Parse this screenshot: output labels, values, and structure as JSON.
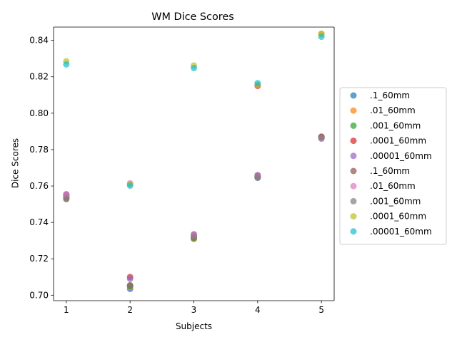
{
  "chart_data": {
    "type": "scatter",
    "title": "WM Dice Scores",
    "xlabel": "Subjects",
    "ylabel": "Dice Scores",
    "xlim": [
      0.8,
      5.2
    ],
    "ylim": [
      0.697,
      0.8473
    ],
    "xticks": [
      1,
      2,
      3,
      4,
      5
    ],
    "yticks": [
      0.7,
      0.72,
      0.74,
      0.76,
      0.78,
      0.8,
      0.82,
      0.84
    ],
    "ytick_labels": [
      "0.70",
      "0.72",
      "0.74",
      "0.76",
      "0.78",
      "0.80",
      "0.82",
      "0.84"
    ],
    "grid": false,
    "legend_position": "center-right-outside",
    "x": [
      1,
      2,
      3,
      4,
      5
    ],
    "series": [
      {
        "name": ".1_60mm",
        "color": "#1f77b4",
        "values": [
          0.753,
          0.7035,
          0.731,
          0.7645,
          0.787
        ]
      },
      {
        "name": ".01_60mm",
        "color": "#ff7f0e",
        "values": [
          0.7535,
          0.7045,
          0.731,
          0.7648,
          0.8435
        ]
      },
      {
        "name": ".001_60mm",
        "color": "#2ca02c",
        "values": [
          0.754,
          0.705,
          0.7315,
          0.765,
          0.787
        ]
      },
      {
        "name": ".0001_60mm",
        "color": "#d62728",
        "values": [
          0.755,
          0.71,
          0.733,
          0.815,
          0.787
        ]
      },
      {
        "name": ".00001_60mm",
        "color": "#9467bd",
        "values": [
          0.7555,
          0.709,
          0.7335,
          0.766,
          0.786
        ]
      },
      {
        "name": ".1_60mm",
        "color": "#8c564b",
        "values": [
          0.7545,
          0.7055,
          0.7325,
          0.7655,
          0.7868
        ]
      },
      {
        "name": ".01_60mm",
        "color": "#e377c2",
        "values": [
          0.7548,
          0.7615,
          0.7328,
          0.7652,
          0.7865
        ]
      },
      {
        "name": ".001_60mm",
        "color": "#7f7f7f",
        "values": [
          0.7528,
          0.7052,
          0.7318,
          0.7647,
          0.7866
        ]
      },
      {
        "name": ".0001_60mm",
        "color": "#bcbd22",
        "values": [
          0.8285,
          0.761,
          0.8262,
          0.8155,
          0.8437
        ]
      },
      {
        "name": ".00001_60mm",
        "color": "#17becf",
        "values": [
          0.8268,
          0.7602,
          0.8248,
          0.8165,
          0.842
        ]
      }
    ]
  }
}
